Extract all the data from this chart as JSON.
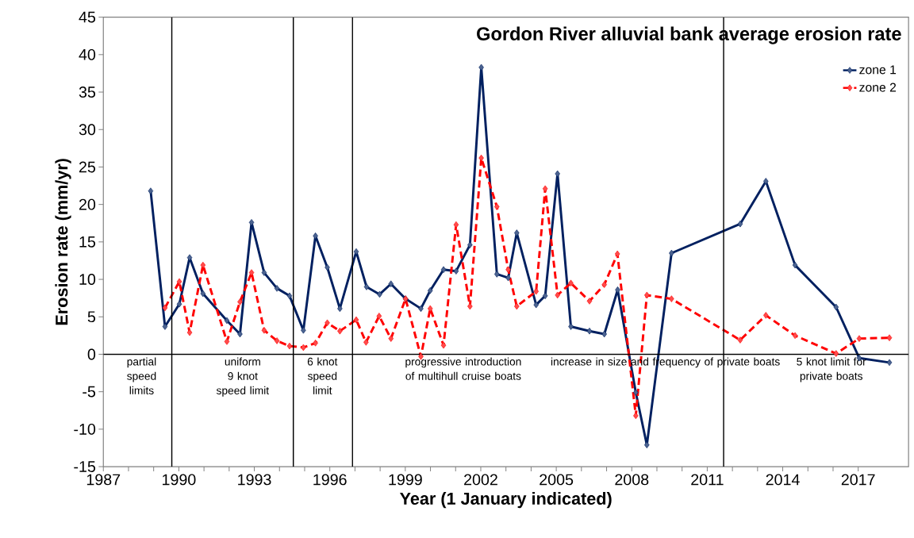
{
  "chart_data": {
    "type": "line",
    "title": "Gordon River alluvial bank average erosion rate",
    "xlabel": "Year (1 January indicated)",
    "ylabel": "Erosion rate (mm/yr)",
    "xlim": [
      1987,
      2019
    ],
    "xticks": [
      1987,
      1990,
      1993,
      1996,
      1999,
      2002,
      2005,
      2008,
      2011,
      2014,
      2017
    ],
    "ylim": [
      -15,
      45
    ],
    "yticks": [
      -15,
      -10,
      -5,
      0,
      5,
      10,
      15,
      20,
      25,
      30,
      35,
      40,
      45
    ],
    "grid": false,
    "legend": "top right",
    "marker": "diamond",
    "series": [
      {
        "name": "zone 1",
        "color": "#002060",
        "line_style": "solid",
        "x": [
          1988.88,
          1989.45,
          1990.02,
          1990.43,
          1990.96,
          1991.91,
          1992.43,
          1992.89,
          1993.39,
          1993.9,
          1994.4,
          1994.95,
          1995.43,
          1995.9,
          1996.4,
          1997.05,
          1997.46,
          1997.98,
          1998.43,
          1999.01,
          1999.62,
          1999.99,
          2000.52,
          2001.02,
          2001.57,
          2002.02,
          2002.64,
          2003.09,
          2003.43,
          2004.2,
          2004.56,
          2005.05,
          2005.58,
          2006.32,
          2006.91,
          2007.44,
          2008.16,
          2008.6,
          2009.58,
          2012.31,
          2013.33,
          2014.49,
          2016.12,
          2017.04,
          2018.24
        ],
        "values": [
          21.8,
          3.7,
          6.7,
          12.9,
          8.1,
          4.5,
          2.7,
          17.6,
          10.9,
          8.8,
          7.8,
          3.2,
          15.8,
          11.6,
          6.1,
          13.7,
          9.0,
          8.0,
          9.4,
          7.4,
          6.1,
          8.5,
          11.3,
          11.1,
          14.6,
          38.3,
          10.7,
          10.2,
          16.2,
          6.6,
          7.8,
          24.1,
          3.7,
          3.1,
          2.7,
          8.6,
          -5.1,
          -12.1,
          13.5,
          17.4,
          23.1,
          11.9,
          6.3,
          -0.5,
          -1.1
        ]
      },
      {
        "name": "zone 2",
        "color": "#ff0000",
        "line_style": "dashed",
        "x": [
          1989.45,
          1990.02,
          1990.43,
          1990.96,
          1991.91,
          1992.43,
          1992.89,
          1993.39,
          1993.9,
          1994.4,
          1994.95,
          1995.43,
          1995.9,
          1996.4,
          1997.05,
          1997.44,
          1997.96,
          1998.43,
          1999.01,
          1999.62,
          1999.99,
          2000.52,
          2001.02,
          2001.57,
          2002.02,
          2002.64,
          2003.09,
          2003.43,
          2004.2,
          2004.56,
          2005.05,
          2005.58,
          2006.32,
          2006.91,
          2007.43,
          2008.16,
          2008.6,
          2009.58,
          2012.31,
          2013.33,
          2014.49,
          2016.12,
          2017.04,
          2018.24
        ],
        "values": [
          6.2,
          9.7,
          2.9,
          11.9,
          1.7,
          7.0,
          10.9,
          3.2,
          1.8,
          1.1,
          0.9,
          1.5,
          4.2,
          3.1,
          4.6,
          1.6,
          5.1,
          2.1,
          7.4,
          -0.3,
          6.1,
          1.2,
          17.3,
          6.4,
          26.2,
          19.7,
          11.3,
          6.4,
          8.4,
          22.1,
          7.9,
          9.5,
          7.1,
          9.3,
          13.4,
          -8.2,
          7.9,
          7.4,
          1.9,
          5.2,
          2.5,
          0.1,
          2.1,
          2.2
        ]
      }
    ],
    "ref_lines": [
      {
        "axis": "y",
        "value": 0,
        "color": "#000000"
      },
      {
        "axis": "x",
        "value": 1989.72,
        "color": "#000000"
      },
      {
        "axis": "x",
        "value": 1994.55,
        "color": "#000000"
      },
      {
        "axis": "x",
        "value": 1996.9,
        "color": "#000000"
      },
      {
        "axis": "x",
        "value": 2011.65,
        "color": "#000000"
      }
    ],
    "annotations": [
      "partial speed limits",
      "uniform 9 knot speed limit",
      "6 knot speed limit",
      "progressive introduction of multihull cruise boats",
      "increase in size and frequency of private boats",
      "5 knot limit for private boats"
    ]
  }
}
